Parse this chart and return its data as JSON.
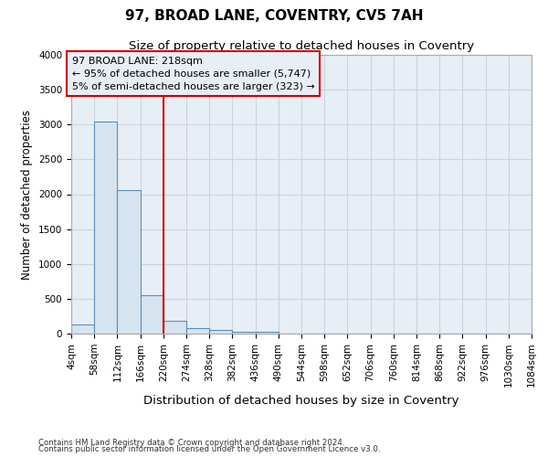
{
  "title": "97, BROAD LANE, COVENTRY, CV5 7AH",
  "subtitle": "Size of property relative to detached houses in Coventry",
  "xlabel": "Distribution of detached houses by size in Coventry",
  "ylabel": "Number of detached properties",
  "footnote1": "Contains HM Land Registry data © Crown copyright and database right 2024.",
  "footnote2": "Contains public sector information licensed under the Open Government Licence v3.0.",
  "annotation_line1": "97 BROAD LANE: 218sqm",
  "annotation_line2": "← 95% of detached houses are smaller (5,747)",
  "annotation_line3": "5% of semi-detached houses are larger (323) →",
  "bar_values": [
    130,
    3040,
    2060,
    550,
    190,
    80,
    55,
    30,
    20,
    0,
    0,
    0,
    0,
    0,
    0,
    0,
    0,
    0,
    0,
    0
  ],
  "bin_edges": [
    4,
    58,
    112,
    166,
    220,
    274,
    328,
    382,
    436,
    490,
    544,
    598,
    652,
    706,
    760,
    814,
    868,
    922,
    976,
    1030,
    1084
  ],
  "bar_color": "#d6e4f0",
  "bar_edgecolor": "#5b8db8",
  "vline_color": "#cc0000",
  "vline_x": 220,
  "annotation_box_color": "#cc0000",
  "fig_bg_color": "#ffffff",
  "axes_bg_color": "#e8eef5",
  "grid_color": "#c8d4e0",
  "ylim": [
    0,
    4000
  ],
  "yticks": [
    0,
    500,
    1000,
    1500,
    2000,
    2500,
    3000,
    3500,
    4000
  ],
  "title_fontsize": 11,
  "subtitle_fontsize": 9.5,
  "xlabel_fontsize": 9.5,
  "ylabel_fontsize": 8.5,
  "tick_fontsize": 7.5,
  "annot_fontsize": 8
}
